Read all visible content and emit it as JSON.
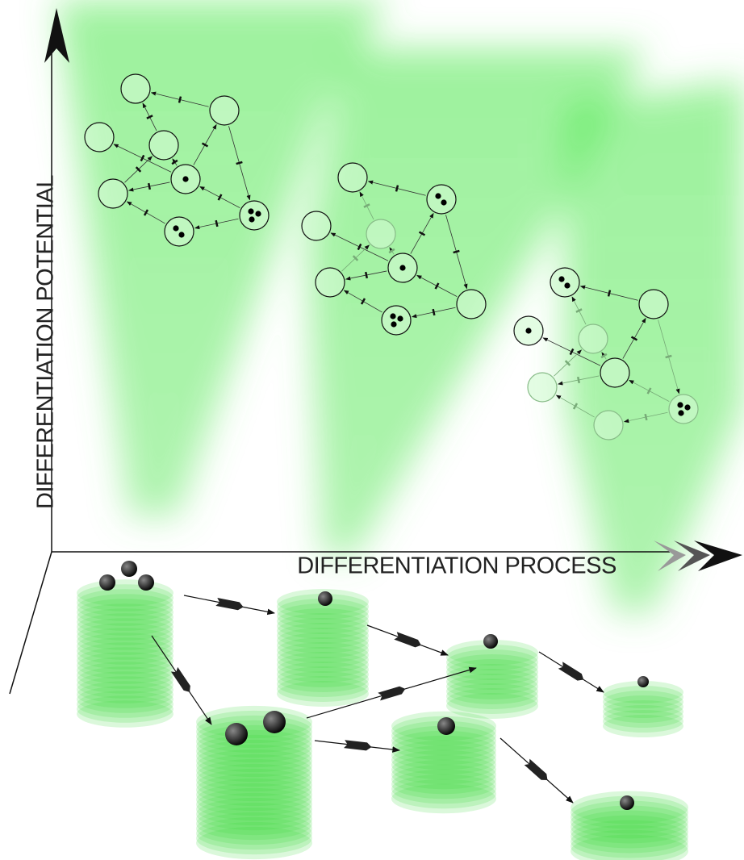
{
  "axes": {
    "y_label": "DIFFERENTIATION POTENTIAL",
    "x_label": "DIFFERENTIATION PROCESS"
  }
}
